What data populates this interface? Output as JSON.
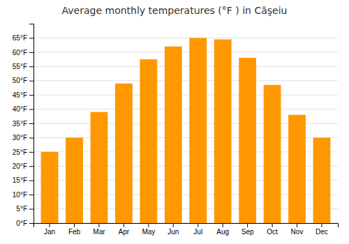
{
  "chart_data": {
    "type": "bar",
    "title": "Average monthly temperatures (°F ) in Căşeiu",
    "categories": [
      "Jan",
      "Feb",
      "Mar",
      "Apr",
      "May",
      "Jun",
      "Jul",
      "Aug",
      "Sep",
      "Oct",
      "Nov",
      "Dec"
    ],
    "values": [
      25,
      30,
      39,
      49,
      57.5,
      62,
      65,
      64.5,
      58,
      48.5,
      38,
      30
    ],
    "color": "#FF9800",
    "ylim": [
      0,
      70
    ],
    "yticks": [
      {
        "value": 0,
        "label": "0°F"
      },
      {
        "value": 5,
        "label": "5°F"
      },
      {
        "value": 10,
        "label": "10°F"
      },
      {
        "value": 15,
        "label": "15°F"
      },
      {
        "value": 20,
        "label": "20°F"
      },
      {
        "value": 25,
        "label": "25°F"
      },
      {
        "value": 30,
        "label": "30°F"
      },
      {
        "value": 35,
        "label": "35°F"
      },
      {
        "value": 40,
        "label": "40°F"
      },
      {
        "value": 45,
        "label": "45°F"
      },
      {
        "value": 50,
        "label": "50°F"
      },
      {
        "value": 55,
        "label": "55°F"
      },
      {
        "value": 60,
        "label": "60°F"
      },
      {
        "value": 65,
        "label": "65°F"
      }
    ],
    "grid": true
  }
}
